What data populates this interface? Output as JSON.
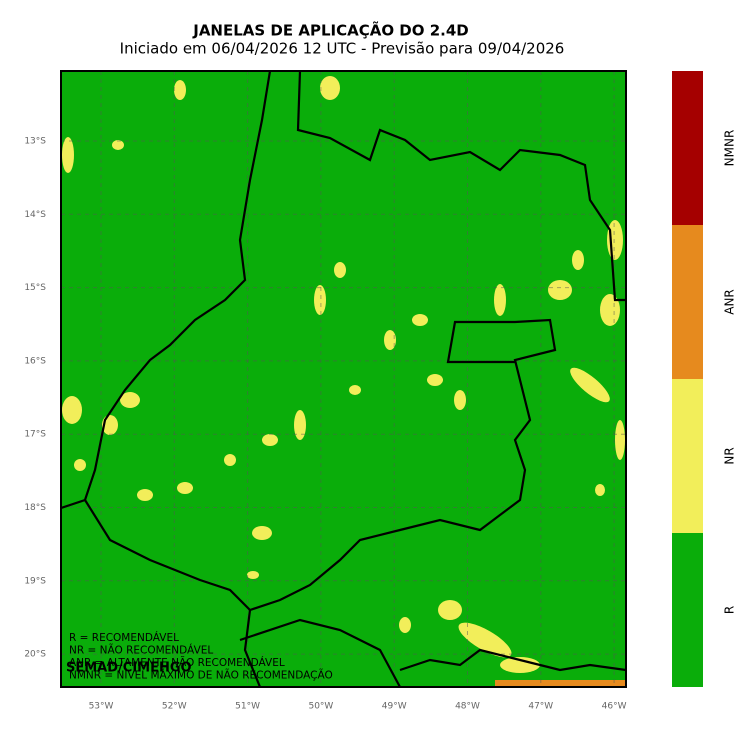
{
  "header": {
    "title": "JANELAS DE APLICAÇÃO DO 2.4D",
    "subtitle": "Iniciado em 06/04/2026 12 UTC - Previsão para 09/04/2026"
  },
  "map": {
    "lon_labels": [
      "53°W",
      "52°W",
      "51°W",
      "50°W",
      "49°W",
      "48°W",
      "47°W",
      "46°W"
    ],
    "lat_labels": [
      "13°S",
      "14°S",
      "15°S",
      "16°S",
      "17°S",
      "18°S",
      "19°S",
      "20°S"
    ],
    "legend": [
      "R = RECOMENDÁVEL",
      "NR = NÃO RECOMENDÁVEL",
      "ANR = ALTAMENTE NÃO RECOMENDÁVEL",
      "NMNR = NÍVEL MÁXIMO DE NÃO RECOMENDAÇÃO"
    ],
    "credit": "SEMAD/CIMEHGO"
  },
  "colorbar": {
    "labels": [
      "NMNR",
      "ANR",
      "NR",
      "R"
    ],
    "colors": [
      "#a50000",
      "#e68a1e",
      "#f2ee5a",
      "#0aad0a"
    ]
  }
}
